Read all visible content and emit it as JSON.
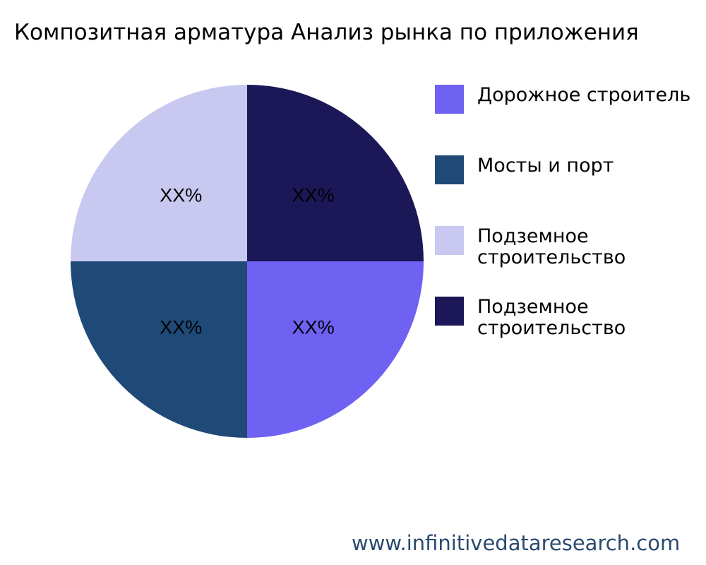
{
  "chart_data": {
    "type": "pie",
    "title": "Композитная арматура Анализ рынка по приложения",
    "slices": [
      {
        "label": "Подземное строительство",
        "value": 25,
        "data_label": "XX%",
        "color": "#1c1757"
      },
      {
        "label": "Дорожное строитель",
        "value": 25,
        "data_label": "XX%",
        "color": "#6f61f2"
      },
      {
        "label": "Мосты и порт",
        "value": 25,
        "data_label": "XX%",
        "color": "#1f4a78"
      },
      {
        "label": "Подземное строительство",
        "value": 25,
        "data_label": "XX%",
        "color": "#c8c8f0"
      }
    ],
    "legend": {
      "placement": "right",
      "entries": [
        {
          "label": "Дорожное строитель",
          "color": "#6f61f2"
        },
        {
          "label": "Мосты и порт",
          "color": "#1f4a78"
        },
        {
          "label": "Подземное\nстроительство",
          "color": "#c8c8f0"
        },
        {
          "label": "Подземное\nстроительство",
          "color": "#1c1757"
        }
      ]
    }
  },
  "watermark": "www.infinitivedataresearch.com"
}
